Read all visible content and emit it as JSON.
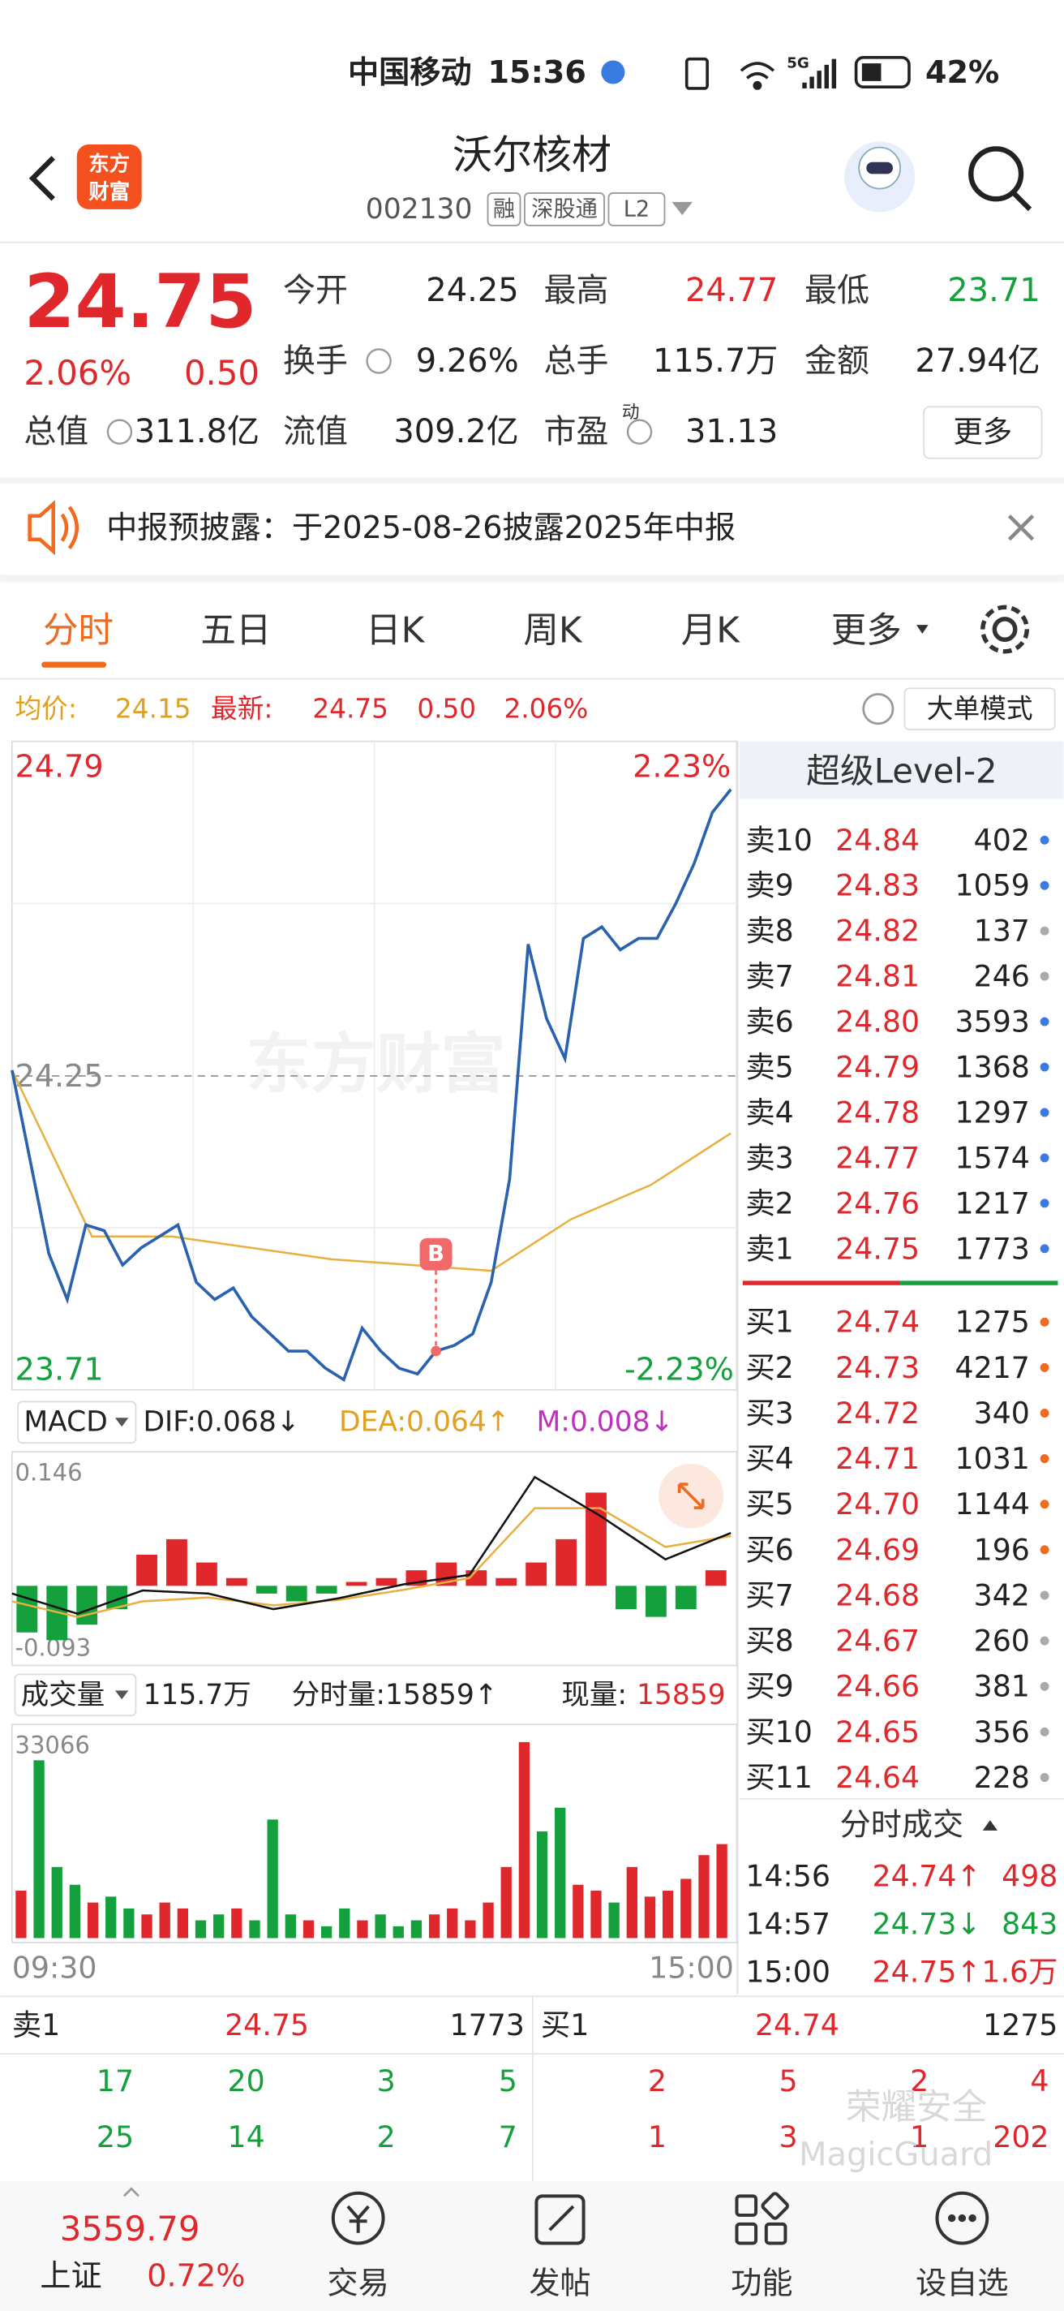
{
  "status": {
    "carrier": "中国移动",
    "time": "15:36",
    "network": "5G",
    "battery": "42%"
  },
  "header": {
    "logo": [
      "东方",
      "财富"
    ],
    "title": "沃尔核材",
    "code": "002130",
    "tags": [
      "融",
      "深股通",
      "L2"
    ]
  },
  "quote": {
    "price": "24.75",
    "pct": "2.06%",
    "change": "0.50",
    "stats": [
      {
        "label": "今开",
        "value": "24.25"
      },
      {
        "label": "最高",
        "value": "24.77"
      },
      {
        "label": "最低",
        "value": "23.71"
      },
      {
        "label": "换手",
        "value": "9.26%"
      },
      {
        "label": "总手",
        "value": "115.7万"
      },
      {
        "label": "金额",
        "value": "27.94亿"
      },
      {
        "label": "总值",
        "value": "311.8亿"
      },
      {
        "label": "流值",
        "value": "309.2亿"
      },
      {
        "label": "市盈",
        "sup": "动",
        "value": "31.13"
      }
    ],
    "more": "更多"
  },
  "notice": "中报预披露：于2025-08-26披露2025年中报",
  "tabs": [
    "分时",
    "五日",
    "日K",
    "周K",
    "月K",
    "更多"
  ],
  "info": {
    "avg_label": "均价:",
    "avg": "24.15",
    "latest_label": "最新:",
    "latest": "24.75",
    "change": "0.50",
    "pct": "2.06%",
    "mode": "大单模式"
  },
  "intraday": {
    "ylim": [
      23.71,
      24.79
    ],
    "yticks": [
      23.71,
      24.25,
      24.79
    ],
    "pct_top": "2.23%",
    "pct_bottom": "-2.23%",
    "watermark": "东方财富",
    "marker": "B",
    "price": [
      24.26,
      24.1,
      23.94,
      23.86,
      23.99,
      23.98,
      23.92,
      23.95,
      23.97,
      23.99,
      23.89,
      23.86,
      23.88,
      23.83,
      23.8,
      23.77,
      23.77,
      23.74,
      23.72,
      23.81,
      23.77,
      23.74,
      23.73,
      23.77,
      23.78,
      23.8,
      23.89,
      24.07,
      24.48,
      24.35,
      24.28,
      24.49,
      24.51,
      24.47,
      24.49,
      24.49,
      24.55,
      24.62,
      24.71,
      24.75
    ],
    "avg": [
      24.26,
      23.97,
      23.97,
      23.95,
      23.93,
      23.92,
      23.91,
      24.0,
      24.06,
      24.15
    ]
  },
  "macd": {
    "label": "MACD",
    "dif": "DIF:0.068↓",
    "dea": "DEA:0.064↑",
    "m": "M:0.008↓",
    "ylim": [
      -0.093,
      0.146
    ],
    "yticks": [
      -0.093,
      0.146
    ],
    "dif_values": [
      -0.01,
      -0.036,
      -0.006,
      -0.01,
      -0.03,
      -0.016,
      0.002,
      0.014,
      0.14,
      0.09,
      0.034,
      0.068
    ],
    "dea_values": [
      -0.02,
      -0.04,
      -0.02,
      -0.015,
      -0.025,
      -0.018,
      -0.005,
      0.01,
      0.1,
      0.1,
      0.05,
      0.064
    ],
    "hist": [
      -0.06,
      -0.07,
      -0.05,
      -0.03,
      0.04,
      0.06,
      0.03,
      0.01,
      -0.01,
      -0.02,
      -0.01,
      0.005,
      0.01,
      0.02,
      0.03,
      0.02,
      0.01,
      0.03,
      0.06,
      0.12,
      -0.03,
      -0.04,
      -0.03,
      0.02
    ]
  },
  "volume": {
    "label": "成交量",
    "total": "115.7万",
    "period": "分时量:15859↑",
    "now_label": "现量:",
    "now": "15859",
    "ylim": [
      0,
      33066
    ],
    "yticks": [
      33066
    ],
    "start": "09:30",
    "end": "15:00",
    "values": [
      8000,
      30000,
      12000,
      9000,
      6000,
      7000,
      5000,
      4000,
      6000,
      5000,
      3000,
      4000,
      5000,
      3000,
      20000,
      4000,
      3000,
      2000,
      5000,
      3000,
      4000,
      2000,
      3000,
      4000,
      5000,
      3000,
      6000,
      12000,
      33066,
      18000,
      22000,
      9000,
      8000,
      6000,
      12000,
      7000,
      8000,
      10000,
      14000,
      15859
    ]
  },
  "level2": {
    "title": "超级Level-2",
    "asks": [
      {
        "name": "卖10",
        "price": "24.84",
        "vol": "402"
      },
      {
        "name": "卖9",
        "price": "24.83",
        "vol": "1059"
      },
      {
        "name": "卖8",
        "price": "24.82",
        "vol": "137"
      },
      {
        "name": "卖7",
        "price": "24.81",
        "vol": "246"
      },
      {
        "name": "卖6",
        "price": "24.80",
        "vol": "3593"
      },
      {
        "name": "卖5",
        "price": "24.79",
        "vol": "1368"
      },
      {
        "name": "卖4",
        "price": "24.78",
        "vol": "1297"
      },
      {
        "name": "卖3",
        "price": "24.77",
        "vol": "1574"
      },
      {
        "name": "卖2",
        "price": "24.76",
        "vol": "1217"
      },
      {
        "name": "卖1",
        "price": "24.75",
        "vol": "1773"
      }
    ],
    "bids": [
      {
        "name": "买1",
        "price": "24.74",
        "vol": "1275"
      },
      {
        "name": "买2",
        "price": "24.73",
        "vol": "4217"
      },
      {
        "name": "买3",
        "price": "24.72",
        "vol": "340"
      },
      {
        "name": "买4",
        "price": "24.71",
        "vol": "1031"
      },
      {
        "name": "买5",
        "price": "24.70",
        "vol": "1144"
      },
      {
        "name": "买6",
        "price": "24.69",
        "vol": "196"
      },
      {
        "name": "买7",
        "price": "24.68",
        "vol": "342"
      },
      {
        "name": "买8",
        "price": "24.67",
        "vol": "260"
      },
      {
        "name": "买9",
        "price": "24.66",
        "vol": "381"
      },
      {
        "name": "买10",
        "price": "24.65",
        "vol": "356"
      },
      {
        "name": "买11",
        "price": "24.64",
        "vol": "228"
      }
    ],
    "trades_title": "分时成交",
    "trades": [
      {
        "time": "14:56",
        "price": "24.74↑",
        "vol": "498"
      },
      {
        "time": "14:57",
        "price": "24.73↓",
        "vol": "843"
      },
      {
        "time": "15:00",
        "price": "24.75↑",
        "vol": "1.6万"
      }
    ]
  },
  "book": {
    "sell": {
      "name": "卖1",
      "price": "24.75",
      "vol": "1773"
    },
    "buy": {
      "name": "买1",
      "price": "24.74",
      "vol": "1275"
    },
    "rows": [
      [
        "17",
        "20",
        "3",
        "5",
        "2",
        "5",
        "2",
        "4"
      ],
      [
        "25",
        "14",
        "2",
        "7",
        "1",
        "3",
        "1",
        "202"
      ]
    ]
  },
  "guard": [
    "荣耀安全",
    "MagicGuard"
  ],
  "nav": {
    "index": "3559.79",
    "index_name": "上证",
    "index_pct": "0.72%",
    "items": [
      "交易",
      "发帖",
      "功能",
      "设自选"
    ]
  }
}
